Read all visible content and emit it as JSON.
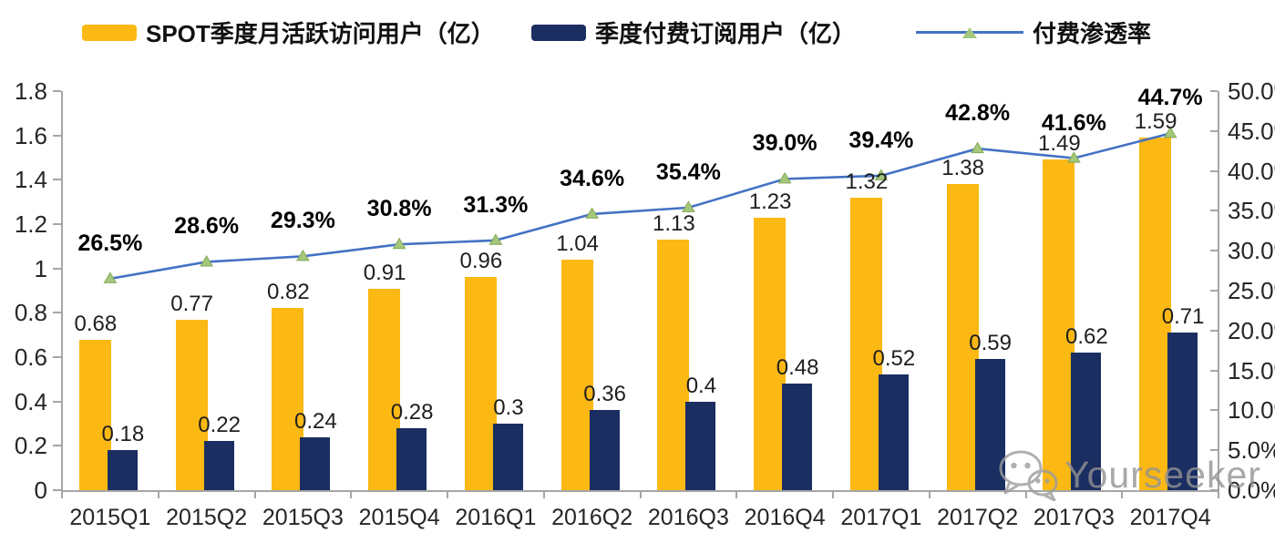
{
  "legend": {
    "items": [
      {
        "label": "SPOT季度月活跃访问用户（亿）",
        "swatch": "bar",
        "color": "#FCB813"
      },
      {
        "label": "季度付费订阅用户（亿）",
        "swatch": "bar",
        "color": "#1B2E62"
      },
      {
        "label": "付费渗透率",
        "swatch": "line-triangle-marker",
        "color": "#4472C4",
        "marker_color": "#A4C77C"
      }
    ]
  },
  "chart_data": {
    "type": "combo-bar-line",
    "categories": [
      "2015Q1",
      "2015Q2",
      "2015Q3",
      "2015Q4",
      "2016Q1",
      "2016Q2",
      "2016Q3",
      "2016Q4",
      "2017Q1",
      "2017Q2",
      "2017Q3",
      "2017Q4"
    ],
    "series": [
      {
        "name": "SPOT季度月活跃访问用户（亿）",
        "type": "bar",
        "axis": "left",
        "color": "#FCB813",
        "values": [
          0.68,
          0.77,
          0.82,
          0.91,
          0.96,
          1.04,
          1.13,
          1.23,
          1.32,
          1.38,
          1.49,
          1.59
        ],
        "data_labels": [
          "0.68",
          "0.77",
          "0.82",
          "0.91",
          "0.96",
          "1.04",
          "1.13",
          "1.23",
          "1.32",
          "1.38",
          "1.49",
          "1.59"
        ]
      },
      {
        "name": "季度付费订阅用户（亿）",
        "type": "bar",
        "axis": "left",
        "color": "#1B2E62",
        "values": [
          0.18,
          0.22,
          0.24,
          0.28,
          0.3,
          0.36,
          0.4,
          0.48,
          0.52,
          0.59,
          0.62,
          0.71
        ],
        "data_labels": [
          "0.18",
          "0.22",
          "0.24",
          "0.28",
          "0.3",
          "0.36",
          "0.4",
          "0.48",
          "0.52",
          "0.59",
          "0.62",
          "0.71"
        ]
      },
      {
        "name": "付费渗透率",
        "type": "line",
        "axis": "right",
        "color": "#4472C4",
        "marker": "triangle",
        "marker_color": "#A4C77C",
        "marker_edge": "#84A957",
        "values": [
          26.5,
          28.6,
          29.3,
          30.8,
          31.3,
          34.6,
          35.4,
          39.0,
          39.4,
          42.8,
          41.6,
          44.7
        ],
        "data_labels": [
          "26.5%",
          "28.6%",
          "29.3%",
          "30.8%",
          "31.3%",
          "34.6%",
          "35.4%",
          "39.0%",
          "39.4%",
          "42.8%",
          "41.6%",
          "44.7%"
        ]
      }
    ],
    "left_axis": {
      "min": 0,
      "max": 1.8,
      "step": 0.2,
      "tick_labels": [
        "1.8",
        "1.6",
        "1.4",
        "1.2",
        "1",
        "0.8",
        "0.6",
        "0.4",
        "0.2",
        "0"
      ]
    },
    "right_axis": {
      "min": 0,
      "max": 50,
      "step": 5,
      "tick_labels": [
        "50.0%",
        "45.0%",
        "40.0%",
        "35.0%",
        "30.0%",
        "25.0%",
        "20.0%",
        "15.0%",
        "10.0%",
        "5.0%",
        "0.0%"
      ]
    },
    "grid": false,
    "legend_position": "top",
    "axis_color": "#A6A6A6",
    "tick_text_color": "#262626"
  },
  "watermark": {
    "text": "Yourseeker",
    "icon": "wechat-icon",
    "color": "#939393"
  }
}
